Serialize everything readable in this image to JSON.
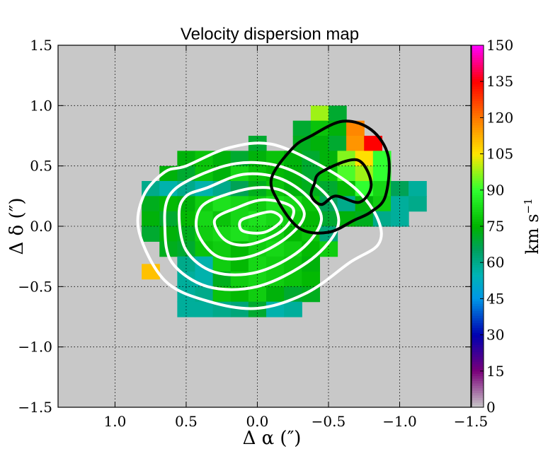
{
  "chart_data": {
    "type": "heatmap",
    "title": "Velocity dispersion map",
    "xlabel": "Δ α  (″)",
    "ylabel": "Δ δ  (″)",
    "xlim": [
      1.4,
      -1.5
    ],
    "ylim": [
      -1.5,
      1.5
    ],
    "grid": true,
    "background_color": "#c8c8c8",
    "x_ticks": [
      {
        "value": 1.0,
        "label": "1.0"
      },
      {
        "value": 0.5,
        "label": "0.5"
      },
      {
        "value": 0.0,
        "label": "0.0"
      },
      {
        "value": -0.5,
        "label": "−0.5"
      },
      {
        "value": -1.0,
        "label": "−1.0"
      },
      {
        "value": -1.5,
        "label": "−1.5"
      }
    ],
    "y_ticks": [
      {
        "value": 1.5,
        "label": "1.5"
      },
      {
        "value": 1.0,
        "label": "1.0"
      },
      {
        "value": 0.5,
        "label": "0.5"
      },
      {
        "value": 0.0,
        "label": "0.0"
      },
      {
        "value": -0.5,
        "label": "−0.5"
      },
      {
        "value": -1.0,
        "label": "−1.0"
      },
      {
        "value": -1.5,
        "label": "−1.5"
      }
    ],
    "colorbar": {
      "label_main": "km s",
      "label_exp": "−1",
      "vmin": 0,
      "vmax": 150,
      "tick_labels": [
        "150",
        "135",
        "120",
        "105",
        "90",
        "75",
        "60",
        "45",
        "30",
        "15",
        "0"
      ],
      "stops": [
        {
          "v": 0,
          "color": "#c8c8c8"
        },
        {
          "v": 15,
          "color": "#7a007a"
        },
        {
          "v": 30,
          "color": "#0000b0"
        },
        {
          "v": 45,
          "color": "#0096e6"
        },
        {
          "v": 55,
          "color": "#00b4b4"
        },
        {
          "v": 65,
          "color": "#00a060"
        },
        {
          "v": 75,
          "color": "#00b400"
        },
        {
          "v": 90,
          "color": "#30ff30"
        },
        {
          "v": 105,
          "color": "#ffe600"
        },
        {
          "v": 120,
          "color": "#ff7800"
        },
        {
          "v": 135,
          "color": "#ff0000"
        },
        {
          "v": 150,
          "color": "#ff00ff"
        }
      ]
    },
    "pixel_size_arcsec": 0.125,
    "map_rows": [
      {
        "dec": 0.9375,
        "ra_centers": [
          -0.4375,
          -0.5625
        ],
        "values": [
          98,
          70
        ]
      },
      {
        "dec": 0.8125,
        "ra_centers": [
          -0.3125,
          -0.4375,
          -0.5625,
          -0.6875
        ],
        "values": [
          70,
          78,
          74,
          118
        ]
      },
      {
        "dec": 0.6875,
        "ra_centers": [
          0.0,
          -0.3125,
          -0.4375,
          -0.5625,
          -0.6875,
          -0.8125
        ],
        "values": [
          70,
          72,
          74,
          70,
          116,
          135
        ]
      },
      {
        "dec": 0.5625,
        "ra_centers": [
          0.5,
          0.375,
          0.25,
          0.125,
          0.0,
          -0.125,
          -0.25,
          -0.375,
          -0.5,
          -0.625,
          -0.75,
          -0.875
        ],
        "values": [
          74,
          78,
          74,
          70,
          74,
          78,
          74,
          70,
          74,
          96,
          106,
          90
        ]
      },
      {
        "dec": 0.4375,
        "ra_centers": [
          0.625,
          0.5,
          0.375,
          0.25,
          0.125,
          0.0,
          -0.125,
          -0.25,
          -0.375,
          -0.5,
          -0.625,
          -0.75,
          -0.875
        ],
        "values": [
          74,
          70,
          78,
          74,
          82,
          78,
          76,
          74,
          70,
          78,
          92,
          98,
          90
        ]
      },
      {
        "dec": 0.3125,
        "ra_centers": [
          0.75,
          0.625,
          0.5,
          0.375,
          0.25,
          0.125,
          0.0,
          -0.125,
          -0.25,
          -0.375,
          -0.5,
          -0.625,
          -0.75,
          -0.875,
          -1.0,
          -1.125
        ],
        "values": [
          60,
          56,
          60,
          56,
          60,
          66,
          72,
          78,
          74,
          72,
          70,
          76,
          90,
          82,
          66,
          58
        ]
      },
      {
        "dec": 0.1875,
        "ra_centers": [
          0.75,
          0.625,
          0.5,
          0.375,
          0.25,
          0.125,
          0.0,
          -0.125,
          -0.25,
          -0.375,
          -0.5,
          -0.625,
          -0.75,
          -0.875,
          -1.0,
          -1.125
        ],
        "values": [
          72,
          76,
          74,
          80,
          84,
          82,
          80,
          84,
          82,
          78,
          66,
          60,
          74,
          80,
          58,
          60
        ]
      },
      {
        "dec": 0.0625,
        "ra_centers": [
          0.75,
          0.625,
          0.5,
          0.375,
          0.25,
          0.125,
          0.0,
          -0.125,
          -0.25,
          -0.375,
          -0.5,
          -0.625,
          -0.75,
          -0.875,
          -1.0
        ],
        "values": [
          74,
          70,
          76,
          82,
          78,
          82,
          84,
          82,
          80,
          76,
          70,
          74,
          72,
          60,
          58
        ]
      },
      {
        "dec": -0.0625,
        "ra_centers": [
          0.75,
          0.625,
          0.5,
          0.375,
          0.25,
          0.125,
          0.0,
          -0.125,
          -0.25,
          -0.375,
          -0.5
        ],
        "values": [
          70,
          74,
          72,
          80,
          82,
          84,
          82,
          80,
          76,
          78,
          62
        ]
      },
      {
        "dec": -0.1875,
        "ra_centers": [
          0.625,
          0.5,
          0.375,
          0.25,
          0.125,
          0.0,
          -0.125,
          -0.25,
          -0.375,
          -0.5
        ],
        "values": [
          72,
          70,
          78,
          80,
          76,
          80,
          82,
          80,
          76,
          80
        ]
      },
      {
        "dec": -0.3125,
        "ra_centers": [
          0.5,
          0.375,
          0.25,
          0.125,
          0.0,
          -0.125,
          -0.25,
          -0.375
        ],
        "values": [
          60,
          56,
          80,
          76,
          82,
          80,
          78,
          74
        ]
      },
      {
        "dec": -0.375,
        "ra_centers": [
          0.75
        ],
        "values": [
          110
        ]
      },
      {
        "dec": -0.4375,
        "ra_centers": [
          0.5,
          0.375,
          0.25,
          0.125,
          0.0,
          -0.125,
          -0.25,
          -0.375
        ],
        "values": [
          58,
          56,
          72,
          80,
          82,
          80,
          78,
          76
        ]
      },
      {
        "dec": -0.5625,
        "ra_centers": [
          0.5,
          0.375,
          0.25,
          0.125,
          0.0,
          -0.125,
          -0.25,
          -0.375
        ],
        "values": [
          58,
          60,
          78,
          76,
          80,
          74,
          70,
          72
        ]
      },
      {
        "dec": -0.6875,
        "ra_centers": [
          0.5,
          0.375,
          0.25,
          0.125,
          0.0,
          -0.125,
          -0.25
        ],
        "values": [
          58,
          58,
          60,
          62,
          70,
          56,
          58
        ]
      }
    ],
    "white_contours": [
      {
        "points": [
          [
            0.5,
            0.5
          ],
          [
            0.2,
            0.65
          ],
          [
            -0.1,
            0.68
          ],
          [
            -0.45,
            0.5
          ],
          [
            -0.7,
            0.3
          ],
          [
            -0.85,
            0.05
          ],
          [
            -0.85,
            -0.15
          ],
          [
            -0.65,
            -0.3
          ],
          [
            -0.35,
            -0.55
          ],
          [
            0.0,
            -0.68
          ],
          [
            0.35,
            -0.62
          ],
          [
            0.65,
            -0.45
          ],
          [
            0.83,
            -0.05
          ],
          [
            0.8,
            0.25
          ],
          [
            0.65,
            0.45
          ]
        ]
      },
      {
        "points": [
          [
            0.45,
            0.4
          ],
          [
            0.15,
            0.52
          ],
          [
            -0.15,
            0.5
          ],
          [
            -0.4,
            0.35
          ],
          [
            -0.55,
            0.15
          ],
          [
            -0.55,
            -0.05
          ],
          [
            -0.35,
            -0.3
          ],
          [
            0.0,
            -0.5
          ],
          [
            0.35,
            -0.5
          ],
          [
            0.6,
            -0.3
          ],
          [
            0.65,
            0.0
          ],
          [
            0.62,
            0.25
          ]
        ]
      },
      {
        "points": [
          [
            0.35,
            0.32
          ],
          [
            0.1,
            0.43
          ],
          [
            -0.15,
            0.4
          ],
          [
            -0.35,
            0.25
          ],
          [
            -0.45,
            0.05
          ],
          [
            -0.3,
            -0.2
          ],
          [
            0.0,
            -0.38
          ],
          [
            0.3,
            -0.38
          ],
          [
            0.5,
            -0.2
          ],
          [
            0.55,
            0.1
          ],
          [
            0.5,
            0.25
          ]
        ]
      },
      {
        "points": [
          [
            0.25,
            0.25
          ],
          [
            0.0,
            0.32
          ],
          [
            -0.2,
            0.28
          ],
          [
            -0.33,
            0.1
          ],
          [
            -0.2,
            -0.1
          ],
          [
            0.05,
            -0.25
          ],
          [
            0.28,
            -0.25
          ],
          [
            0.42,
            -0.05
          ],
          [
            0.4,
            0.15
          ]
        ]
      },
      {
        "points": [
          [
            0.15,
            0.15
          ],
          [
            -0.05,
            0.22
          ],
          [
            -0.25,
            0.15
          ],
          [
            -0.18,
            -0.03
          ],
          [
            0.05,
            -0.15
          ],
          [
            0.22,
            -0.12
          ],
          [
            0.3,
            0.05
          ]
        ]
      },
      {
        "points": [
          [
            0.05,
            0.08
          ],
          [
            -0.1,
            0.12
          ],
          [
            -0.17,
            0.05
          ],
          [
            -0.05,
            -0.05
          ],
          [
            0.1,
            -0.04
          ],
          [
            0.12,
            0.04
          ]
        ]
      }
    ],
    "black_contours": [
      {
        "points": [
          [
            -0.38,
            0.75
          ],
          [
            -0.6,
            0.87
          ],
          [
            -0.8,
            0.8
          ],
          [
            -0.92,
            0.58
          ],
          [
            -0.9,
            0.25
          ],
          [
            -0.8,
            0.12
          ],
          [
            -0.68,
            0.05
          ],
          [
            -0.5,
            -0.05
          ],
          [
            -0.3,
            -0.02
          ],
          [
            -0.15,
            0.2
          ],
          [
            -0.1,
            0.4
          ],
          [
            -0.25,
            0.65
          ]
        ]
      },
      {
        "points": [
          [
            -0.45,
            0.45
          ],
          [
            -0.7,
            0.55
          ],
          [
            -0.8,
            0.35
          ],
          [
            -0.72,
            0.2
          ],
          [
            -0.55,
            0.25
          ],
          [
            -0.45,
            0.18
          ],
          [
            -0.38,
            0.25
          ],
          [
            -0.4,
            0.35
          ]
        ]
      }
    ]
  }
}
